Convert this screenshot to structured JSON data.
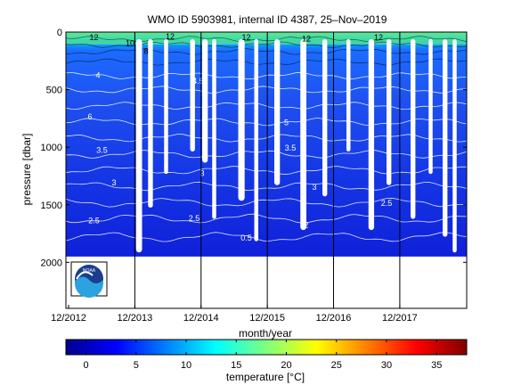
{
  "chart_data": {
    "type": "heatmap",
    "title": "WMO ID 5903981, internal ID 4387, 25–Nov–2019",
    "xlabel": "month/year",
    "ylabel": "pressure [dbar]",
    "x_tick_labels": [
      "12/2012",
      "12/2013",
      "12/2014",
      "12/2015",
      "12/2016",
      "12/2017"
    ],
    "y_ticks": [
      0,
      500,
      1000,
      1500,
      2000
    ],
    "ylim": [
      0,
      2400
    ],
    "y_reversed": true,
    "profile_max_depth": 1950,
    "colorbar": {
      "label": "temperature [°C]",
      "ticks": [
        0,
        5,
        10,
        15,
        20,
        25,
        30,
        35
      ],
      "range": [
        -2,
        38
      ],
      "colormap": "jet"
    },
    "contour_labels": [
      {
        "text": "12",
        "x": 0.07,
        "p": 70
      },
      {
        "text": "10",
        "x": 0.16,
        "p": 120
      },
      {
        "text": "12",
        "x": 0.26,
        "p": 60
      },
      {
        "text": "12",
        "x": 0.45,
        "p": 70
      },
      {
        "text": "12",
        "x": 0.6,
        "p": 80
      },
      {
        "text": "12",
        "x": 0.78,
        "p": 70
      },
      {
        "text": "8",
        "x": 0.2,
        "p": 190
      },
      {
        "text": "4",
        "x": 0.08,
        "p": 400
      },
      {
        "text": "4.5",
        "x": 0.33,
        "p": 450
      },
      {
        "text": "6",
        "x": 0.06,
        "p": 760
      },
      {
        "text": "5",
        "x": 0.55,
        "p": 810
      },
      {
        "text": "3.5",
        "x": 0.09,
        "p": 1050
      },
      {
        "text": "3.5",
        "x": 0.56,
        "p": 1030
      },
      {
        "text": "3",
        "x": 0.34,
        "p": 1250
      },
      {
        "text": "3",
        "x": 0.12,
        "p": 1330
      },
      {
        "text": "3",
        "x": 0.62,
        "p": 1370
      },
      {
        "text": "2.5",
        "x": 0.07,
        "p": 1660
      },
      {
        "text": "2.5",
        "x": 0.32,
        "p": 1640
      },
      {
        "text": "2.5",
        "x": 0.8,
        "p": 1510
      },
      {
        "text": "2",
        "x": 0.6,
        "p": 1700
      },
      {
        "text": "0.5",
        "x": 0.45,
        "p": 1810
      }
    ],
    "grid": false,
    "logo": "noaa"
  }
}
